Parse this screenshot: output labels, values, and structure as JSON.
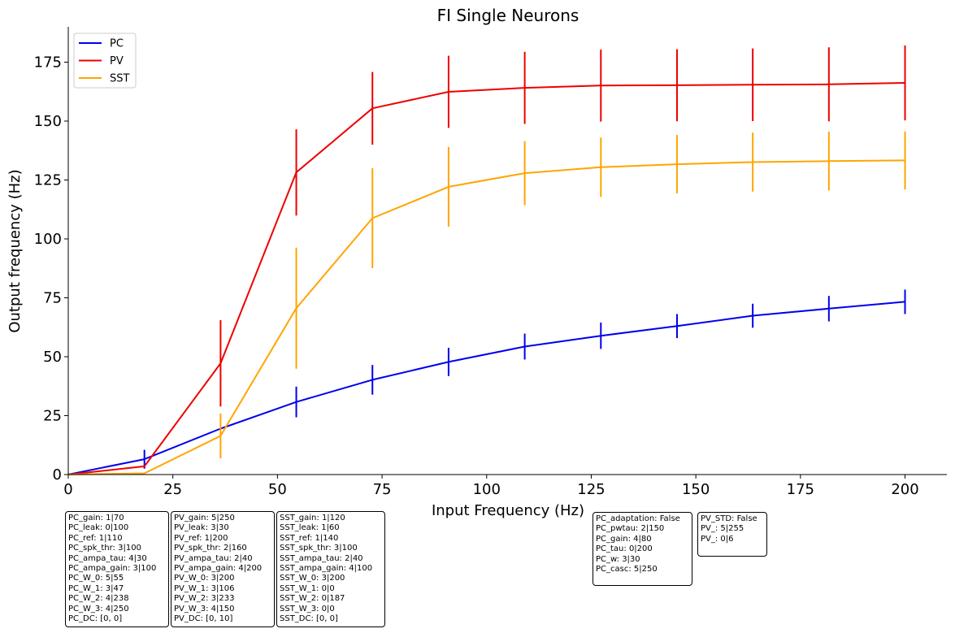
{
  "chart_data": {
    "type": "line",
    "title": "FI Single Neurons",
    "xlabel": "Input Frequency (Hz)",
    "ylabel": "Output frequency (Hz)",
    "xlim": [
      0,
      210
    ],
    "ylim": [
      0,
      190
    ],
    "xticks": [
      0,
      25,
      50,
      75,
      100,
      125,
      150,
      175,
      200
    ],
    "yticks": [
      0,
      25,
      50,
      75,
      100,
      125,
      150,
      175
    ],
    "grid": false,
    "legend_position": "top-left",
    "x": [
      0,
      18.2,
      36.4,
      54.5,
      72.7,
      90.9,
      109.1,
      127.3,
      145.5,
      163.6,
      181.8,
      200
    ],
    "series": [
      {
        "name": "PC",
        "color": "#0000ee",
        "values": [
          0,
          6.5,
          19.5,
          30.8,
          40.2,
          47.8,
          54.3,
          58.9,
          63,
          67.4,
          70.4,
          73.3
        ],
        "errors": [
          0,
          4,
          0,
          6.5,
          6.3,
          6,
          5.5,
          5.6,
          5.1,
          5.1,
          5.4,
          5.2
        ]
      },
      {
        "name": "PV",
        "color": "#ee0000",
        "values": [
          0,
          3.5,
          47.2,
          128.2,
          155.4,
          162.4,
          164.1,
          165.1,
          165.2,
          165.4,
          165.6,
          166.2
        ],
        "errors": [
          0,
          0,
          18.3,
          18.3,
          15.4,
          15.3,
          15.3,
          15.3,
          15.3,
          15.4,
          15.7,
          15.9
        ]
      },
      {
        "name": "SST",
        "color": "#ffa500",
        "values": [
          0,
          0.5,
          16.4,
          70.6,
          108.8,
          122.1,
          127.9,
          130.4,
          131.7,
          132.6,
          133,
          133.3
        ],
        "errors": [
          0,
          0,
          9.5,
          25.7,
          21.2,
          16.9,
          13.6,
          12.6,
          12.4,
          12.5,
          12.5,
          12.3
        ]
      }
    ]
  },
  "info_boxes": [
    {
      "lines": [
        "PC_gain: 1|70",
        "PC_leak: 0|100",
        "PC_ref: 1|110",
        "PC_spk_thr: 3|100",
        "PC_ampa_tau: 4|30",
        "PC_ampa_gain: 3|100",
        "PC_W_0: 5|55",
        "PC_W_1: 3|47",
        "PC_W_2: 4|238",
        "PC_W_3: 4|250",
        "PC_DC: [0, 0]"
      ]
    },
    {
      "lines": [
        "PV_gain: 5|250",
        "PV_leak: 3|30",
        "PV_ref: 1|200",
        "PV_spk_thr: 2|160",
        "PV_ampa_tau: 2|40",
        "PV_ampa_gain: 4|200",
        "PV_W_0: 3|200",
        "PV_W_1: 3|106",
        "PV_W_2: 3|233",
        "PV_W_3: 4|150",
        "PV_DC: [0, 10]"
      ]
    },
    {
      "lines": [
        "SST_gain: 1|120",
        "SST_leak: 1|60",
        "SST_ref: 1|140",
        "SST_spk_thr: 3|100",
        "SST_ampa_tau: 2|40",
        "SST_ampa_gain: 4|100",
        "SST_W_0: 3|200",
        "SST_W_1: 0|0",
        "SST_W_2: 0|187",
        "SST_W_3: 0|0",
        "SST_DC: [0, 0]"
      ]
    },
    {
      "lines": [
        "PC_adaptation: False",
        "PC_pwtau: 2|150",
        "PC_gain: 4|80",
        "PC_tau: 0|200",
        "PC_w: 3|30",
        "PC_casc: 5|250"
      ]
    },
    {
      "lines": [
        "PV_STD: False",
        "PV_: 5|255",
        "PV_: 0|6"
      ]
    }
  ]
}
